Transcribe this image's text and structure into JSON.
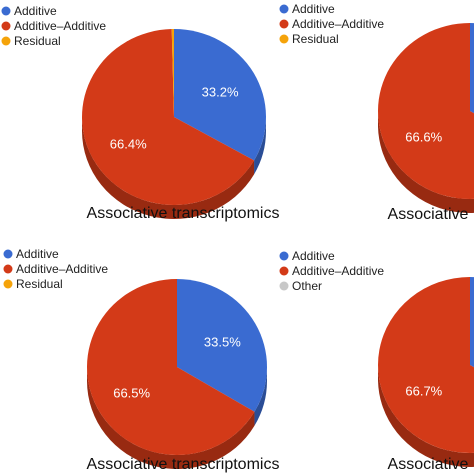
{
  "colors": {
    "additive": "#3a6bd1",
    "additive_additive": "#d33a18",
    "residual": "#f5a30a",
    "other": "#c8c8c8"
  },
  "chart_data": [
    {
      "type": "pie",
      "title": "Associative transcriptomics",
      "legend_position": "top-left",
      "series": [
        {
          "name": "Additive",
          "value": 33.2,
          "label": "33.2%",
          "color": "#3a6bd1"
        },
        {
          "name": "Additive–Additive",
          "value": 66.4,
          "label": "66.4%",
          "color": "#d33a18"
        },
        {
          "name": "Residual",
          "value": 0.4,
          "label": "",
          "color": "#f5a30a"
        }
      ]
    },
    {
      "type": "pie",
      "title": "Associative",
      "legend_position": "top-left",
      "series": [
        {
          "name": "Additive",
          "value": 33.4,
          "label": "",
          "color": "#3a6bd1"
        },
        {
          "name": "Additive–Additive",
          "value": 66.6,
          "label": "66.6%",
          "color": "#d33a18"
        },
        {
          "name": "Residual",
          "value": 0.0,
          "label": "",
          "color": "#f5a30a"
        }
      ]
    },
    {
      "type": "pie",
      "title": "Associative transcriptomics",
      "legend_position": "top-left",
      "series": [
        {
          "name": "Additive",
          "value": 33.5,
          "label": "33.5%",
          "color": "#3a6bd1"
        },
        {
          "name": "Additive–Additive",
          "value": 66.5,
          "label": "66.5%",
          "color": "#d33a18"
        },
        {
          "name": "Residual",
          "value": 0.0,
          "label": "",
          "color": "#f5a30a"
        }
      ]
    },
    {
      "type": "pie",
      "title": "Associative",
      "legend_position": "top-left",
      "series": [
        {
          "name": "Additive",
          "value": 33.3,
          "label": "",
          "color": "#3a6bd1"
        },
        {
          "name": "Additive–Additive",
          "value": 66.7,
          "label": "66.7%",
          "color": "#d33a18"
        },
        {
          "name": "Other",
          "value": 0.0,
          "label": "",
          "color": "#c8c8c8"
        }
      ]
    }
  ]
}
